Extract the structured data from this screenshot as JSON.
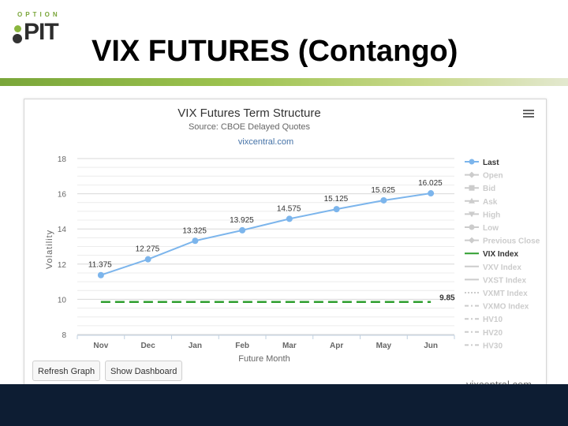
{
  "slide": {
    "logo_top": "OPTION",
    "logo_main": "PIT",
    "title": "VIX FUTURES (Contango)"
  },
  "buttons": {
    "refresh": "Refresh Graph",
    "dashboard": "Show Dashboard"
  },
  "credit": "vixcentral.com",
  "chart_data": {
    "type": "line",
    "title": "VIX Futures Term Structure",
    "subtitle": "Source: CBOE Delayed Quotes",
    "subtitle_link": "vixcentral.com",
    "xlabel": "Future Month",
    "ylabel": "Volatility",
    "categories": [
      "Nov",
      "Dec",
      "Jan",
      "Feb",
      "Mar",
      "Apr",
      "May",
      "Jun"
    ],
    "ylim": [
      8,
      18
    ],
    "yticks": [
      8,
      10,
      12,
      14,
      16,
      18
    ],
    "grid": true,
    "legend_position": "right",
    "series": [
      {
        "name": "Last",
        "values": [
          11.375,
          12.275,
          13.325,
          13.925,
          14.575,
          15.125,
          15.625,
          16.025
        ],
        "color": "#7cb5ec",
        "labels": [
          "11.375",
          "12.275",
          "13.325",
          "13.925",
          "14.575",
          "15.125",
          "15.625",
          "16.025"
        ]
      },
      {
        "name": "VIX Index",
        "values": [
          9.85,
          9.85,
          9.85,
          9.85,
          9.85,
          9.85,
          9.85,
          9.85
        ],
        "color": "#2e9e2e",
        "style": "dashed",
        "label": "9.85"
      }
    ],
    "legend": [
      {
        "name": "Last",
        "active": true,
        "marker": "circle",
        "color": "#7cb5ec"
      },
      {
        "name": "Open",
        "active": false,
        "marker": "diamond"
      },
      {
        "name": "Bid",
        "active": false,
        "marker": "square"
      },
      {
        "name": "Ask",
        "active": false,
        "marker": "triangle"
      },
      {
        "name": "High",
        "active": false,
        "marker": "triangle-down"
      },
      {
        "name": "Low",
        "active": false,
        "marker": "circle"
      },
      {
        "name": "Previous Close",
        "active": false,
        "marker": "diamond"
      },
      {
        "name": "VIX Index",
        "active": true,
        "marker": "line",
        "color": "#2e9e2e"
      },
      {
        "name": "VXV Index",
        "active": false,
        "marker": "line"
      },
      {
        "name": "VXST Index",
        "active": false,
        "marker": "line"
      },
      {
        "name": "VXMT Index",
        "active": false,
        "marker": "dotted"
      },
      {
        "name": "VXMO Index",
        "active": false,
        "marker": "dashdot"
      },
      {
        "name": "HV10",
        "active": false,
        "marker": "dashdot"
      },
      {
        "name": "HV20",
        "active": false,
        "marker": "dashdot"
      },
      {
        "name": "HV30",
        "active": false,
        "marker": "dashdot"
      }
    ]
  }
}
